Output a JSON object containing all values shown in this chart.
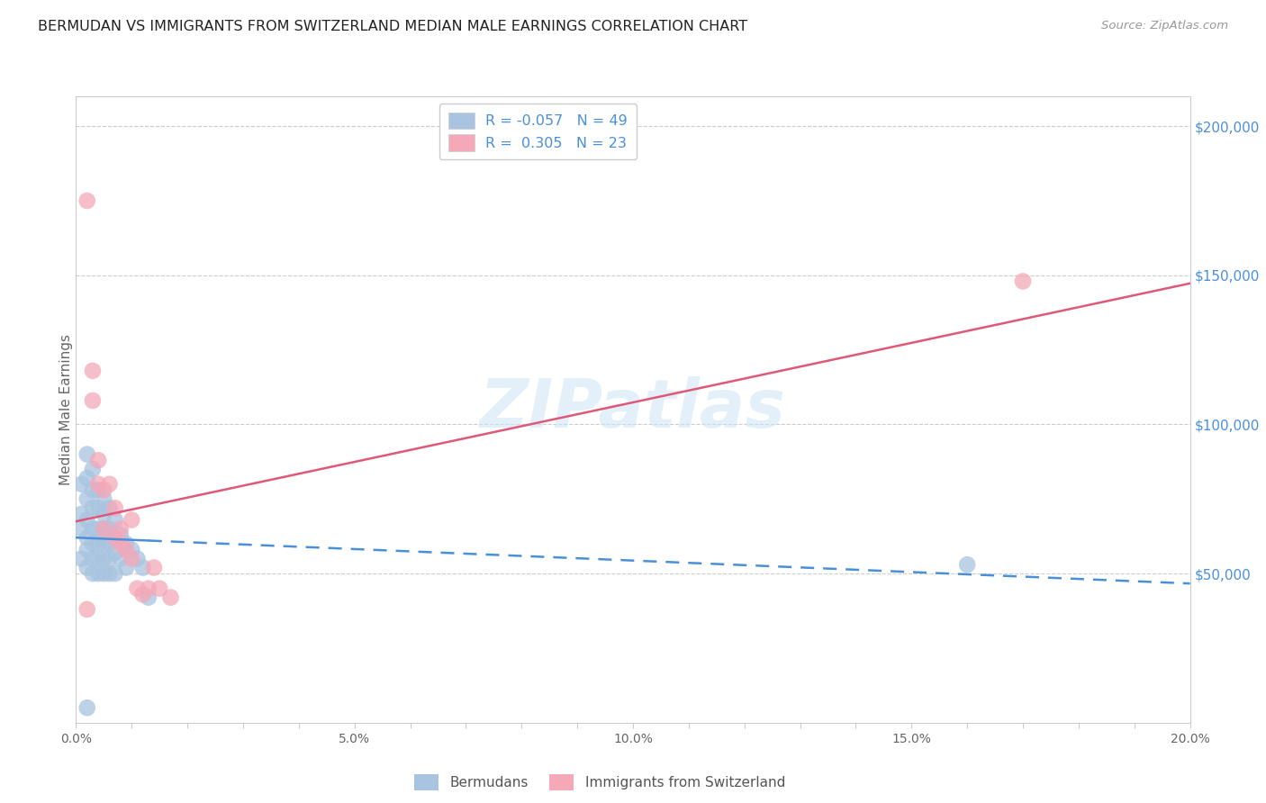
{
  "title": "BERMUDAN VS IMMIGRANTS FROM SWITZERLAND MEDIAN MALE EARNINGS CORRELATION CHART",
  "source": "Source: ZipAtlas.com",
  "ylabel": "Median Male Earnings",
  "watermark": "ZIPatlas",
  "xlim": [
    0.0,
    0.2
  ],
  "ylim": [
    0,
    210000
  ],
  "xtick_labels": [
    "0.0%",
    "",
    "",
    "",
    "",
    "5.0%",
    "",
    "",
    "",
    "",
    "10.0%",
    "",
    "",
    "",
    "",
    "15.0%",
    "",
    "",
    "",
    "",
    "20.0%"
  ],
  "xtick_values": [
    0.0,
    0.01,
    0.02,
    0.03,
    0.04,
    0.05,
    0.06,
    0.07,
    0.08,
    0.09,
    0.1,
    0.11,
    0.12,
    0.13,
    0.14,
    0.15,
    0.16,
    0.17,
    0.18,
    0.19,
    0.2
  ],
  "ytick_right_labels": [
    "$50,000",
    "$100,000",
    "$150,000",
    "$200,000"
  ],
  "ytick_right_values": [
    50000,
    100000,
    150000,
    200000
  ],
  "bermudans_R": "-0.057",
  "bermudans_N": "49",
  "swiss_R": "0.305",
  "swiss_N": "23",
  "bermudans_color": "#a8c4e0",
  "swiss_color": "#f4a8b8",
  "line_blue": "#4a90d9",
  "line_pink": "#e05878",
  "background_color": "#ffffff",
  "right_axis_color": "#4a90d9",
  "grid_color": "#cccccc",
  "bermudans_x": [
    0.001,
    0.001,
    0.001,
    0.001,
    0.002,
    0.002,
    0.002,
    0.002,
    0.002,
    0.002,
    0.002,
    0.003,
    0.003,
    0.003,
    0.003,
    0.003,
    0.003,
    0.003,
    0.004,
    0.004,
    0.004,
    0.004,
    0.004,
    0.004,
    0.005,
    0.005,
    0.005,
    0.005,
    0.005,
    0.005,
    0.006,
    0.006,
    0.006,
    0.006,
    0.006,
    0.007,
    0.007,
    0.007,
    0.007,
    0.008,
    0.008,
    0.009,
    0.009,
    0.01,
    0.011,
    0.012,
    0.013,
    0.16,
    0.002
  ],
  "bermudans_y": [
    80000,
    70000,
    65000,
    55000,
    90000,
    82000,
    75000,
    68000,
    62000,
    58000,
    52000,
    85000,
    78000,
    72000,
    65000,
    60000,
    55000,
    50000,
    78000,
    72000,
    65000,
    60000,
    55000,
    50000,
    75000,
    70000,
    65000,
    60000,
    55000,
    50000,
    72000,
    65000,
    60000,
    55000,
    50000,
    68000,
    62000,
    57000,
    50000,
    63000,
    55000,
    60000,
    52000,
    58000,
    55000,
    52000,
    42000,
    53000,
    5000
  ],
  "swiss_x": [
    0.002,
    0.003,
    0.003,
    0.004,
    0.004,
    0.005,
    0.006,
    0.007,
    0.007,
    0.008,
    0.008,
    0.009,
    0.01,
    0.01,
    0.011,
    0.012,
    0.013,
    0.014,
    0.015,
    0.017,
    0.17,
    0.002,
    0.005
  ],
  "swiss_y": [
    175000,
    118000,
    108000,
    88000,
    80000,
    78000,
    80000,
    72000,
    62000,
    65000,
    60000,
    58000,
    68000,
    55000,
    45000,
    43000,
    45000,
    52000,
    45000,
    42000,
    148000,
    38000,
    65000
  ]
}
